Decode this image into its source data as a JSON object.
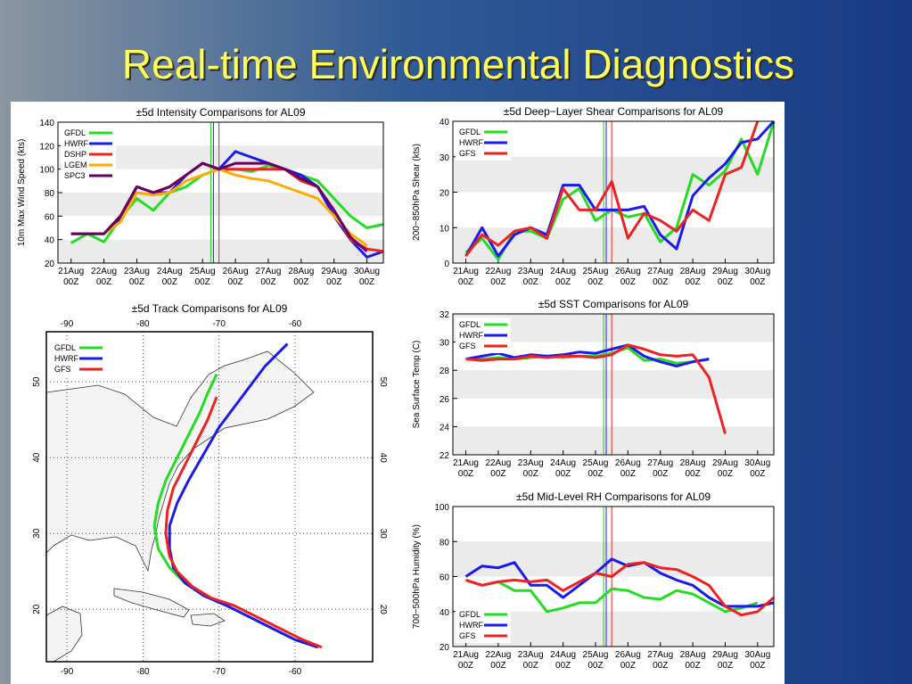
{
  "title": "Real-time Environmental Diagnostics",
  "chart_data": [
    {
      "type": "line",
      "title": "±5d Intensity Comparisons for AL09",
      "ylabel": "10m Max Wind Speed (kts)",
      "xlim": [
        -0.4,
        9.5
      ],
      "ylim": [
        20,
        140
      ],
      "yticks": [
        20,
        40,
        60,
        80,
        100,
        120,
        140
      ],
      "xticks": [
        {
          "value": 0,
          "label": "21Aug 00Z"
        },
        {
          "value": 1,
          "label": "22Aug 00Z"
        },
        {
          "value": 2,
          "label": "23Aug 00Z"
        },
        {
          "value": 3,
          "label": "24Aug 00Z"
        },
        {
          "value": 4,
          "label": "25Aug 00Z"
        },
        {
          "value": 5,
          "label": "26Aug 00Z"
        },
        {
          "value": 6,
          "label": "27Aug 00Z"
        },
        {
          "value": 7,
          "label": "28Aug 00Z"
        },
        {
          "value": 8,
          "label": "29Aug 00Z"
        },
        {
          "value": 9,
          "label": "30Aug 00Z"
        }
      ],
      "legend": "top-left",
      "bands": true,
      "markers": [
        {
          "x": 4.25,
          "color": "#22cc22"
        },
        {
          "x": 4.33,
          "color": "#1a1aff"
        },
        {
          "x": 4.5,
          "color": "#ee2222"
        }
      ],
      "x": [
        0,
        0.5,
        1,
        1.5,
        2,
        2.5,
        3,
        3.5,
        4,
        4.5,
        5,
        5.5,
        6,
        6.5,
        7,
        7.5,
        8,
        8.5,
        9,
        9.5
      ],
      "series": [
        {
          "name": "GFDL",
          "color": "#22dd22",
          "values": [
            37,
            45,
            38,
            58,
            75,
            65,
            80,
            85,
            95,
            100,
            100,
            98,
            103,
            100,
            95,
            90,
            75,
            60,
            50,
            53
          ]
        },
        {
          "name": "HWRF",
          "color": "#1a1aee",
          "values": [
            45,
            45,
            45,
            58,
            85,
            80,
            80,
            95,
            105,
            100,
            115,
            110,
            105,
            100,
            95,
            85,
            60,
            40,
            25,
            30
          ]
        },
        {
          "name": "DSHP",
          "color": "#ee2222",
          "values": [
            45,
            45,
            45,
            60,
            85,
            80,
            85,
            95,
            105,
            100,
            100,
            100,
            100,
            100,
            90,
            85,
            65,
            40,
            32,
            30
          ]
        },
        {
          "name": "LGEM",
          "color": "#ffaa00",
          "values": [
            45,
            45,
            45,
            55,
            80,
            78,
            80,
            90,
            95,
            100,
            95,
            92,
            90,
            85,
            80,
            75,
            60,
            45,
            35,
            null
          ]
        },
        {
          "name": "SPC3",
          "color": "#660066",
          "values": [
            45,
            45,
            45,
            60,
            85,
            80,
            85,
            95,
            105,
            100,
            105,
            105,
            105,
            100,
            92,
            85,
            65,
            42,
            30,
            null
          ]
        }
      ]
    },
    {
      "type": "line",
      "title": "±5d Deep−Layer Shear Comparisons for AL09",
      "ylabel": "200−850hPa Shear (kts)",
      "xlim": [
        -0.4,
        9.5
      ],
      "ylim": [
        0,
        40
      ],
      "yticks": [
        0,
        10,
        20,
        30,
        40
      ],
      "xticks": [
        {
          "value": 0,
          "label": "21Aug 00Z"
        },
        {
          "value": 1,
          "label": "22Aug 00Z"
        },
        {
          "value": 2,
          "label": "23Aug 00Z"
        },
        {
          "value": 3,
          "label": "24Aug 00Z"
        },
        {
          "value": 4,
          "label": "25Aug 00Z"
        },
        {
          "value": 5,
          "label": "26Aug 00Z"
        },
        {
          "value": 6,
          "label": "27Aug 00Z"
        },
        {
          "value": 7,
          "label": "28Aug 00Z"
        },
        {
          "value": 8,
          "label": "29Aug 00Z"
        },
        {
          "value": 9,
          "label": "30Aug 00Z"
        }
      ],
      "legend": "top-left",
      "bands": true,
      "markers": [
        {
          "x": 4.25,
          "color": "#22cc22"
        },
        {
          "x": 4.33,
          "color": "#1a1aff"
        },
        {
          "x": 4.5,
          "color": "#ee2222"
        }
      ],
      "x": [
        0,
        0.5,
        1,
        1.5,
        2,
        2.5,
        3,
        3.5,
        4,
        4.5,
        5,
        5.5,
        6,
        6.5,
        7,
        7.5,
        8,
        8.5,
        9,
        9.5
      ],
      "series": [
        {
          "name": "GFDL",
          "color": "#22dd22",
          "values": [
            3,
            7,
            1,
            9,
            9,
            7,
            18,
            21,
            12,
            15,
            13,
            14,
            6,
            10,
            25,
            22,
            26,
            35,
            25,
            40
          ]
        },
        {
          "name": "HWRF",
          "color": "#1a1aee",
          "values": [
            2,
            10,
            2,
            8,
            10,
            8,
            22,
            22,
            15,
            15,
            15,
            16,
            8,
            4,
            19,
            24,
            28,
            34,
            35,
            40
          ]
        },
        {
          "name": "GFS",
          "color": "#ee2222",
          "values": [
            2,
            8,
            5,
            9,
            10,
            7,
            21,
            15,
            15,
            23,
            7,
            14,
            12,
            9,
            15,
            12,
            25,
            27,
            40,
            null
          ]
        }
      ]
    },
    {
      "type": "line",
      "title": "±5d SST Comparisons for AL09",
      "ylabel": "Sea Surface Temp (C)",
      "xlim": [
        -0.4,
        9.5
      ],
      "ylim": [
        22,
        32
      ],
      "yticks": [
        22,
        24,
        26,
        28,
        30,
        32
      ],
      "xticks": [
        {
          "value": 0,
          "label": "21Aug 00Z"
        },
        {
          "value": 1,
          "label": "22Aug 00Z"
        },
        {
          "value": 2,
          "label": "23Aug 00Z"
        },
        {
          "value": 3,
          "label": "24Aug 00Z"
        },
        {
          "value": 4,
          "label": "25Aug 00Z"
        },
        {
          "value": 5,
          "label": "26Aug 00Z"
        },
        {
          "value": 6,
          "label": "27Aug 00Z"
        },
        {
          "value": 7,
          "label": "28Aug 00Z"
        },
        {
          "value": 8,
          "label": "29Aug 00Z"
        },
        {
          "value": 9,
          "label": "30Aug 00Z"
        }
      ],
      "legend": "top-left",
      "bands": true,
      "markers": [
        {
          "x": 4.25,
          "color": "#22cc22"
        },
        {
          "x": 4.33,
          "color": "#1a1aff"
        },
        {
          "x": 4.5,
          "color": "#ee2222"
        }
      ],
      "x": [
        0,
        0.5,
        1,
        1.5,
        2,
        2.5,
        3,
        3.5,
        4,
        4.5,
        5,
        5.5,
        6,
        6.5,
        7,
        7.5,
        8,
        8.5,
        9,
        9.5
      ],
      "series": [
        {
          "name": "GFDL",
          "color": "#22dd22",
          "values": [
            28.8,
            28.8,
            28.9,
            28.8,
            28.9,
            29,
            28.9,
            29,
            29,
            29.2,
            29.6,
            28.7,
            28.8,
            28.5,
            28.6,
            28.8,
            null,
            null,
            null,
            null
          ]
        },
        {
          "name": "HWRF",
          "color": "#1a1aee",
          "values": [
            28.8,
            29,
            29.2,
            28.9,
            29.1,
            29,
            29.1,
            29.3,
            29.2,
            29.5,
            29.8,
            29,
            28.6,
            28.3,
            28.6,
            28.8,
            null,
            null,
            null,
            null
          ]
        },
        {
          "name": "GFS",
          "color": "#ee2222",
          "values": [
            28.8,
            28.7,
            28.8,
            28.8,
            29,
            28.9,
            29,
            29,
            28.9,
            29.1,
            29.8,
            29.5,
            29.1,
            29,
            29.1,
            27.5,
            23.5,
            null,
            null,
            null
          ]
        }
      ]
    },
    {
      "type": "line",
      "title": "±5d Mid-Level RH Comparisons for AL09",
      "ylabel": "700−500hPa Humidity (%)",
      "xlim": [
        -0.4,
        9.5
      ],
      "ylim": [
        20,
        100
      ],
      "yticks": [
        20,
        40,
        60,
        80,
        100
      ],
      "xticks": [
        {
          "value": 0,
          "label": "21Aug 00Z"
        },
        {
          "value": 1,
          "label": "22Aug 00Z"
        },
        {
          "value": 2,
          "label": "23Aug 00Z"
        },
        {
          "value": 3,
          "label": "24Aug 00Z"
        },
        {
          "value": 4,
          "label": "25Aug 00Z"
        },
        {
          "value": 5,
          "label": "26Aug 00Z"
        },
        {
          "value": 6,
          "label": "27Aug 00Z"
        },
        {
          "value": 7,
          "label": "28Aug 00Z"
        },
        {
          "value": 8,
          "label": "29Aug 00Z"
        },
        {
          "value": 9,
          "label": "30Aug 00Z"
        }
      ],
      "legend": "bottom-left",
      "bands": true,
      "markers": [
        {
          "x": 4.25,
          "color": "#22cc22"
        },
        {
          "x": 4.33,
          "color": "#1a1aff"
        },
        {
          "x": 4.5,
          "color": "#ee2222"
        }
      ],
      "x": [
        0,
        0.5,
        1,
        1.5,
        2,
        2.5,
        3,
        3.5,
        4,
        4.5,
        5,
        5.5,
        6,
        6.5,
        7,
        7.5,
        8,
        8.5,
        9,
        9.5
      ],
      "series": [
        {
          "name": "GFDL",
          "color": "#22dd22",
          "values": [
            58,
            55,
            57,
            52,
            52,
            40,
            42,
            45,
            45,
            53,
            52,
            48,
            47,
            52,
            50,
            45,
            40,
            42,
            45,
            null
          ]
        },
        {
          "name": "HWRF",
          "color": "#1a1aee",
          "values": [
            60,
            66,
            65,
            68,
            55,
            55,
            48,
            55,
            62,
            70,
            66,
            68,
            62,
            58,
            55,
            48,
            43,
            43,
            43,
            45
          ]
        },
        {
          "name": "GFS",
          "color": "#ee2222",
          "values": [
            58,
            55,
            57,
            58,
            57,
            58,
            52,
            57,
            62,
            60,
            67,
            68,
            65,
            64,
            60,
            55,
            43,
            38,
            40,
            48
          ]
        }
      ]
    },
    {
      "type": "track",
      "title": "±5d Track Comparisons for AL09",
      "xlim": [
        -92.7,
        -49.8
      ],
      "ylim": [
        13.1,
        56.6
      ],
      "xticks": [
        -90,
        -80,
        -70,
        -60
      ],
      "yticks": [
        20,
        30,
        40,
        50
      ],
      "legend": "top-left",
      "grid": true,
      "series": [
        {
          "name": "GFDL",
          "color": "#22dd22",
          "x": [
            -57,
            -60,
            -63,
            -66,
            -69,
            -72,
            -74.5,
            -76.5,
            -78,
            -78.5,
            -78,
            -77,
            -75.5,
            -74,
            -72.5,
            -71.5,
            -70.3
          ],
          "values": [
            15,
            16,
            17.5,
            19,
            20.5,
            21.8,
            23.5,
            25.5,
            28,
            31,
            34,
            37,
            40,
            43,
            46,
            48.5,
            51
          ]
        },
        {
          "name": "HWRF",
          "color": "#1a1aee",
          "x": [
            -57,
            -60,
            -63,
            -66,
            -69,
            -72,
            -74.5,
            -76,
            -76.5,
            -76.5,
            -75.5,
            -74,
            -72,
            -70,
            -67,
            -64,
            -61
          ],
          "values": [
            15,
            16,
            17.5,
            19,
            20.5,
            21.8,
            23.5,
            25.5,
            28,
            31,
            34,
            37,
            40.5,
            44,
            48,
            52,
            55
          ]
        },
        {
          "name": "GFS",
          "color": "#ee2222",
          "x": [
            -56.5,
            -59,
            -62,
            -65,
            -68,
            -71,
            -73.5,
            -75.5,
            -76.5,
            -77,
            -76.8,
            -76,
            -74.5,
            -73,
            -71.5,
            -70.3
          ],
          "values": [
            15,
            16,
            17.5,
            19,
            20.5,
            21.5,
            23,
            25,
            27,
            30,
            33,
            36,
            39,
            42,
            45,
            48
          ]
        }
      ]
    }
  ]
}
